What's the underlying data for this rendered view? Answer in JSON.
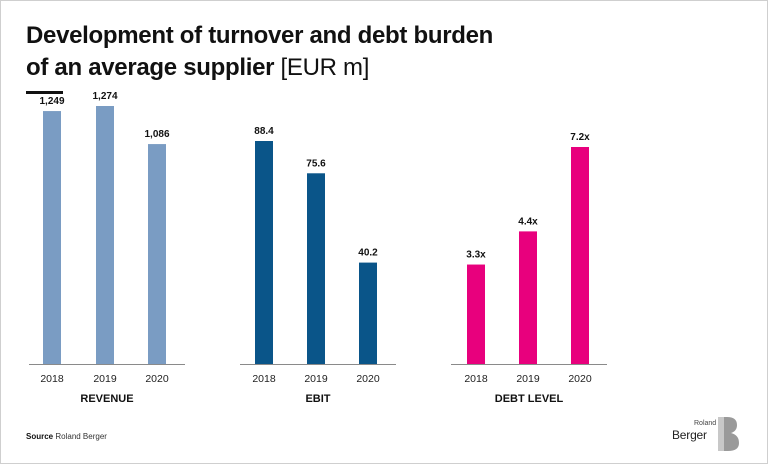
{
  "title": {
    "line1": "Development of turnover and debt burden",
    "line2_bold": "of an average supplier",
    "line2_light": " [EUR m]"
  },
  "source": {
    "label": "Source",
    "text": "Roland Berger"
  },
  "logo": {
    "top": "Roland",
    "bottom": "Berger",
    "mark": "B"
  },
  "chart_data": [
    {
      "type": "bar",
      "title": "REVENUE",
      "categories": [
        "2018",
        "2019",
        "2020"
      ],
      "values": [
        1249,
        1274,
        1086
      ],
      "labels": [
        "1,249",
        "1,274",
        "1,086"
      ],
      "color": "#7a9cc3"
    },
    {
      "type": "bar",
      "title": "EBIT",
      "categories": [
        "2018",
        "2019",
        "2020"
      ],
      "values": [
        88.4,
        75.6,
        40.2
      ],
      "labels": [
        "88.4",
        "75.6",
        "40.2"
      ],
      "color": "#0a5589"
    },
    {
      "type": "bar",
      "title": "DEBT LEVEL",
      "categories": [
        "2018",
        "2019",
        "2020"
      ],
      "values": [
        3.3,
        4.4,
        7.2
      ],
      "labels": [
        "3.3x",
        "4.4x",
        "7.2x"
      ],
      "color": "#e8007d"
    }
  ]
}
